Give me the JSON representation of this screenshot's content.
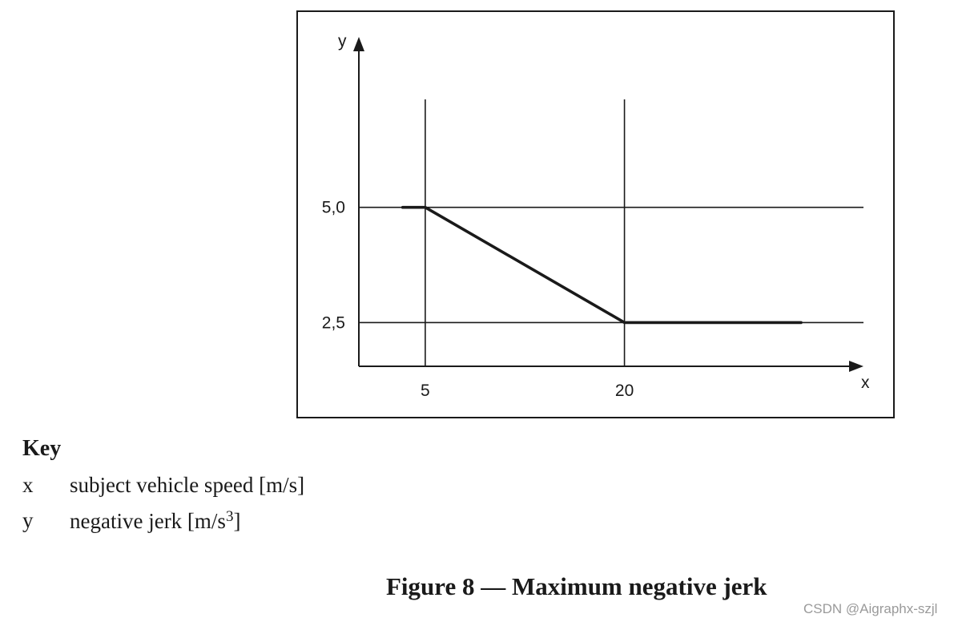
{
  "chart_data": {
    "type": "line",
    "x_axis_label": "x",
    "y_axis_label": "y",
    "x_ticks": [
      "5",
      "20"
    ],
    "y_ticks": [
      "5,0",
      "2,5"
    ],
    "series": [
      {
        "x": [
          3.3,
          5,
          20,
          33.3
        ],
        "y": [
          5.0,
          5.0,
          2.5,
          2.5
        ]
      }
    ],
    "xlim": [
      0,
      38
    ],
    "ylim": [
      1.55,
      8.7
    ],
    "grid_x": [
      5,
      20
    ],
    "grid_y": [
      5.0,
      2.5
    ]
  },
  "key": {
    "title": "Key",
    "items": [
      {
        "symbol": "x",
        "text": "subject vehicle speed [m/s]"
      },
      {
        "symbol": "y",
        "text": "negative jerk [m/s",
        "sup": "3",
        "suffix": "]"
      }
    ]
  },
  "caption": "Figure 8 — Maximum negative jerk",
  "watermark": "CSDN @Aigraphx-szjl",
  "colors": {
    "line": "#1a1a1a",
    "watermark": "#9a9a9a"
  }
}
